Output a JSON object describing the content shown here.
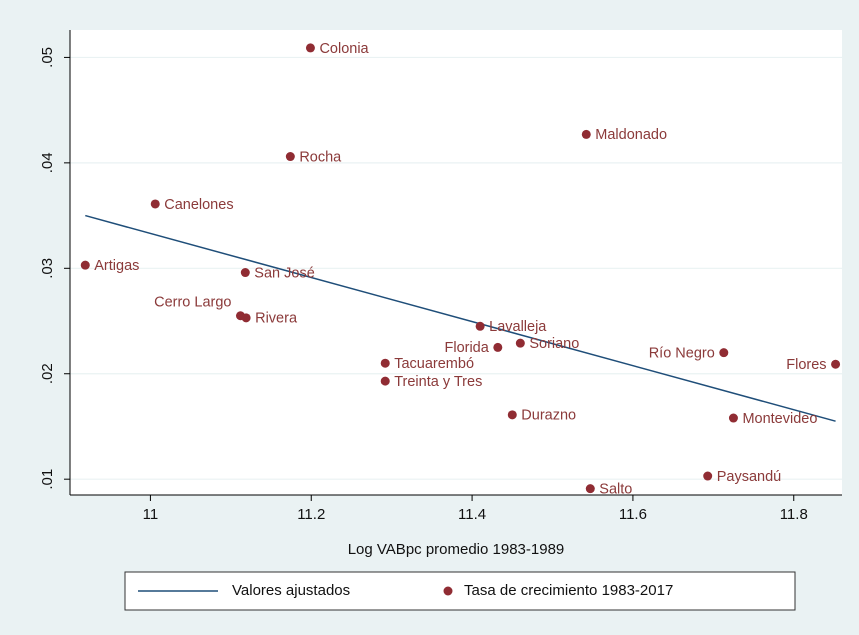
{
  "chart_data": {
    "type": "scatter",
    "xlabel": "Log VABpc promedio 1983-1989",
    "xlim": [
      10.9,
      11.86
    ],
    "xticks": [
      11,
      11.2,
      11.4,
      11.6,
      11.8
    ],
    "ylim": [
      0.0085,
      0.0526
    ],
    "yticks": [
      {
        "value": 0.01,
        "label": ".01"
      },
      {
        "value": 0.02,
        "label": ".02"
      },
      {
        "value": 0.03,
        "label": ".03"
      },
      {
        "value": 0.04,
        "label": ".04"
      },
      {
        "value": 0.05,
        "label": ".05"
      }
    ],
    "grid": true,
    "series": [
      {
        "name": "Valores ajustados",
        "type": "line",
        "color": "#1f4e79",
        "x": [
          10.919,
          11.852
        ],
        "values": [
          0.035,
          0.0155
        ]
      },
      {
        "name": "Tasa de crecimiento 1983-2017",
        "type": "scatter",
        "color": "#902c33",
        "labels": [
          "Artigas",
          "Canelones",
          "Cerro Largo",
          "Colonia",
          "Durazno",
          "Flores",
          "Florida",
          "Lavalleja",
          "Maldonado",
          "Montevideo",
          "Paysandú",
          "Río Negro",
          "Rivera",
          "Rocha",
          "Salto",
          "San José",
          "Soriano",
          "Tacuarembó",
          "Treinta y Tres"
        ],
        "x": [
          10.919,
          11.006,
          11.112,
          11.199,
          11.45,
          11.852,
          11.432,
          11.41,
          11.542,
          11.725,
          11.693,
          11.713,
          11.119,
          11.174,
          11.547,
          11.118,
          11.46,
          11.292,
          11.292
        ],
        "values": [
          0.0303,
          0.0361,
          0.0255,
          0.0509,
          0.0161,
          0.0209,
          0.0225,
          0.0245,
          0.0427,
          0.0158,
          0.0103,
          0.022,
          0.0253,
          0.0406,
          0.0091,
          0.0296,
          0.0229,
          0.021,
          0.0193
        ]
      }
    ]
  }
}
